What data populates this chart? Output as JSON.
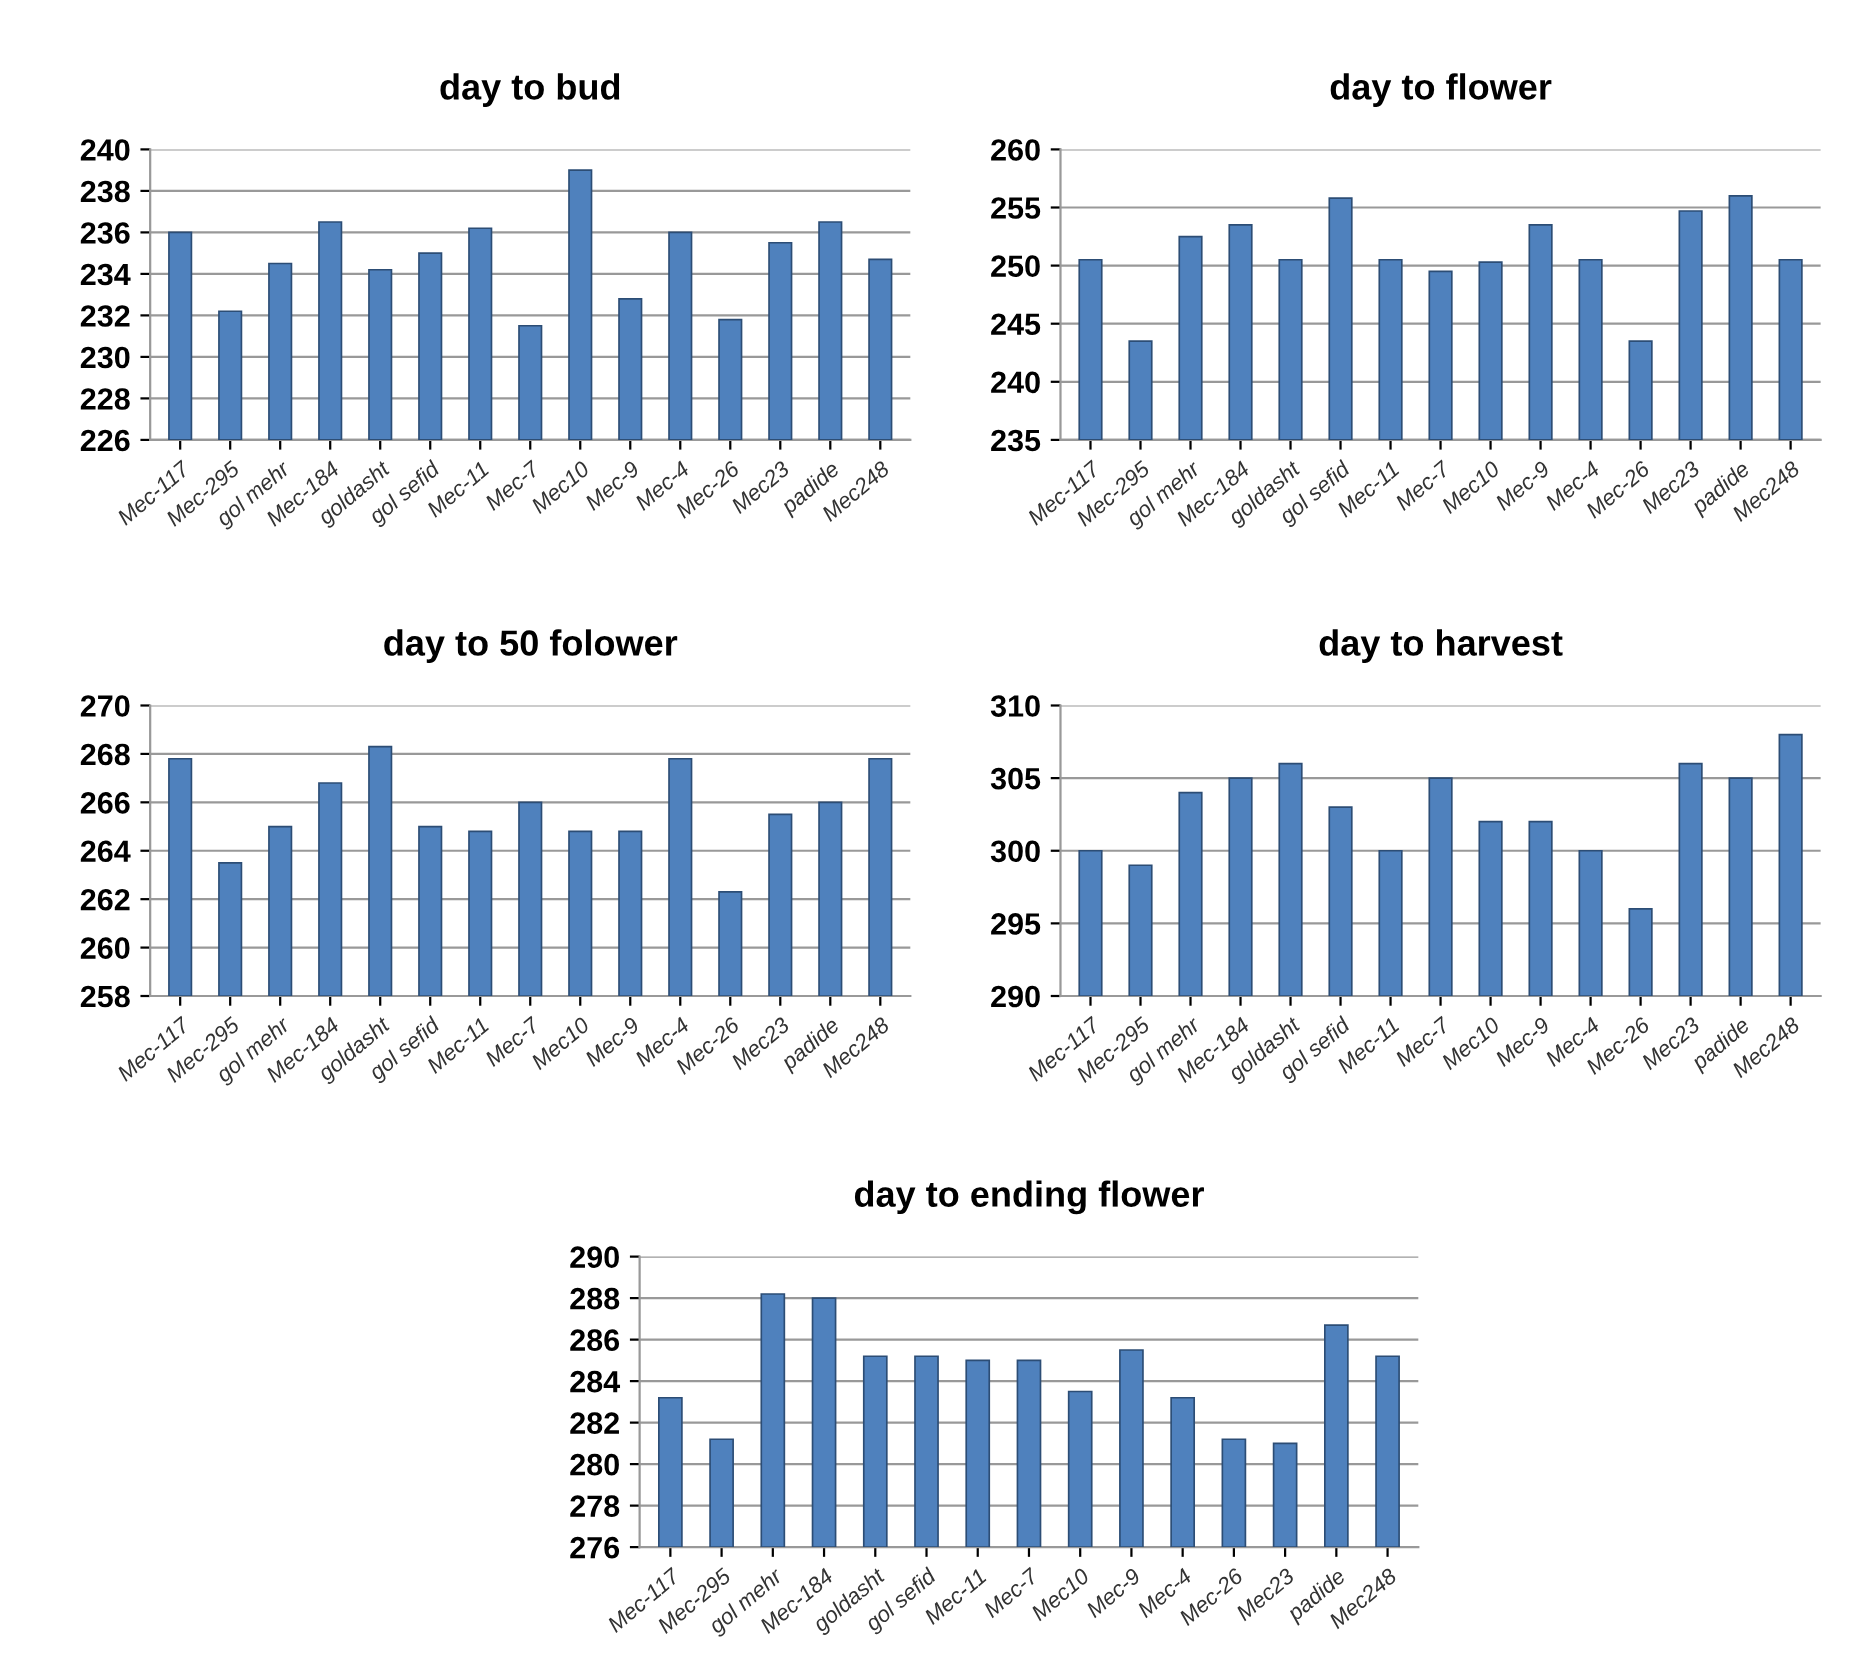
{
  "chart_data": [
    {
      "type": "bar",
      "title": "day to bud",
      "categories": [
        "Mec-117",
        "Mec-295",
        "gol mehr",
        "Mec-184",
        "goldasht",
        "gol sefid",
        "Mec-11",
        "Mec-7",
        "Mec10",
        "Mec-9",
        "Mec-4",
        "Mec-26",
        "Mec23",
        "padide",
        "Mec248"
      ],
      "values": [
        236,
        232.2,
        234.5,
        236.5,
        234.2,
        235,
        236.2,
        231.5,
        239,
        232.8,
        236,
        231.8,
        235.5,
        236.5,
        234.7
      ],
      "color": "#4f81bd",
      "ylim": [
        226,
        240
      ],
      "yticks": [
        226,
        228,
        230,
        232,
        234,
        236,
        238,
        240
      ],
      "grid": "y"
    },
    {
      "type": "bar",
      "title": "day to flower",
      "categories": [
        "Mec-117",
        "Mec-295",
        "gol mehr",
        "Mec-184",
        "goldasht",
        "gol sefid",
        "Mec-11",
        "Mec-7",
        "Mec10",
        "Mec-9",
        "Mec-4",
        "Mec-26",
        "Mec23",
        "padide",
        "Mec248"
      ],
      "values": [
        250.5,
        243.5,
        252.5,
        253.5,
        250.5,
        255.8,
        250.5,
        249.5,
        250.3,
        253.5,
        250.5,
        243.5,
        254.7,
        256,
        250.5
      ],
      "color": "#4f81bd",
      "ylim": [
        235,
        260
      ],
      "yticks": [
        235,
        240,
        245,
        250,
        255,
        260
      ],
      "grid": "y"
    },
    {
      "type": "bar",
      "title": "day to 50 folower",
      "categories": [
        "Mec-117",
        "Mec-295",
        "gol mehr",
        "Mec-184",
        "goldasht",
        "gol sefid",
        "Mec-11",
        "Mec-7",
        "Mec10",
        "Mec-9",
        "Mec-4",
        "Mec-26",
        "Mec23",
        "padide",
        "Mec248"
      ],
      "values": [
        267.8,
        263.5,
        265,
        266.8,
        268.3,
        265,
        264.8,
        266,
        264.8,
        264.8,
        267.8,
        262.3,
        265.5,
        266,
        267.8
      ],
      "color": "#4f81bd",
      "ylim": [
        258,
        270
      ],
      "yticks": [
        258,
        260,
        262,
        264,
        266,
        268,
        270
      ],
      "grid": "y"
    },
    {
      "type": "bar",
      "title": "day to harvest",
      "categories": [
        "Mec-117",
        "Mec-295",
        "gol mehr",
        "Mec-184",
        "goldasht",
        "gol sefid",
        "Mec-11",
        "Mec-7",
        "Mec10",
        "Mec-9",
        "Mec-4",
        "Mec-26",
        "Mec23",
        "padide",
        "Mec248"
      ],
      "values": [
        300,
        299,
        304,
        305,
        306,
        303,
        300,
        305,
        302,
        302,
        300,
        296,
        306,
        305,
        308
      ],
      "color": "#4f81bd",
      "ylim": [
        290,
        310
      ],
      "yticks": [
        290,
        295,
        300,
        305,
        310
      ],
      "grid": "y"
    },
    {
      "type": "bar",
      "title": "day to ending flower",
      "categories": [
        "Mec-117",
        "Mec-295",
        "gol mehr",
        "Mec-184",
        "goldasht",
        "gol sefid",
        "Mec-11",
        "Mec-7",
        "Mec10",
        "Mec-9",
        "Mec-4",
        "Mec-26",
        "Mec23",
        "padide",
        "Mec248"
      ],
      "values": [
        283.2,
        281.2,
        288.2,
        288,
        285.2,
        285.2,
        285,
        285,
        283.5,
        285.5,
        283.2,
        281.2,
        281,
        286.7,
        285.2
      ],
      "color": "#4f81bd",
      "ylim": [
        276,
        290
      ],
      "yticks": [
        276,
        278,
        280,
        282,
        284,
        286,
        288,
        290
      ],
      "grid": "y"
    }
  ]
}
